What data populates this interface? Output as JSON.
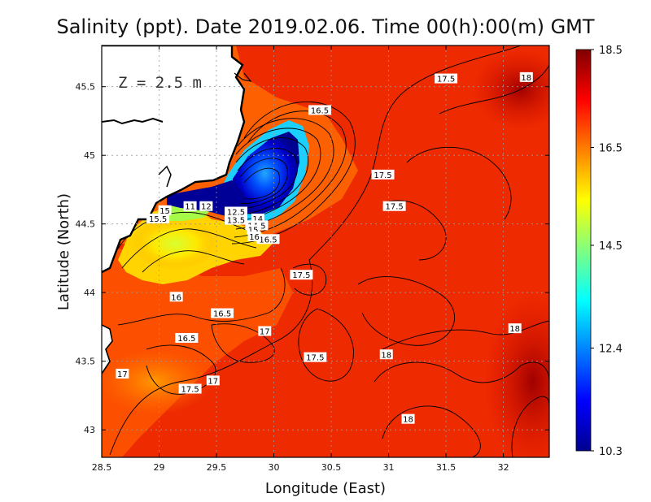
{
  "title": "Salinity (ppt). Date 2019.02.06. Time 00(h):00(m) GMT",
  "depth_label": "Z = 2.5 m",
  "xlabel": "Longitude (East)",
  "ylabel": "Latitude (North)",
  "colors": {
    "frame": "#000000",
    "grid": "#9a9a9a",
    "land": "#ffffff",
    "coast": "#000000",
    "colormap": [
      "#00008f",
      "#0000ff",
      "#0080ff",
      "#00ffff",
      "#80ff80",
      "#ffff00",
      "#ff8000",
      "#ff0000",
      "#800000"
    ]
  },
  "chart_data": {
    "type": "heatmap",
    "title": "Salinity (ppt). Date 2019.02.06. Time 00(h):00(m) GMT",
    "xlabel": "Longitude (East)",
    "ylabel": "Latitude (North)",
    "xlim": [
      28.5,
      32.4
    ],
    "ylim": [
      42.8,
      45.8
    ],
    "x_ticks": [
      28.5,
      29,
      29.5,
      30,
      30.5,
      31,
      31.5,
      32
    ],
    "x_tick_labels": [
      "28.5",
      "29",
      "29.5",
      "30",
      "30.5",
      "31",
      "31.5",
      "32"
    ],
    "y_ticks": [
      43,
      43.5,
      44,
      44.5,
      45,
      45.5
    ],
    "y_tick_labels": [
      "43",
      "43.5",
      "44",
      "44.5",
      "45",
      "45.5"
    ],
    "grid": true,
    "colorbar": {
      "min": 10.3,
      "max": 18.5,
      "ticks": [
        10.3,
        12.4,
        14.5,
        16.5,
        18.5
      ],
      "tick_labels": [
        "10.3",
        "12.4",
        "14.5",
        "16.5",
        "18.5"
      ]
    },
    "contour_labels": [
      {
        "text": "17.5",
        "lon": 31.5,
        "lat": 45.56
      },
      {
        "text": "18",
        "lon": 32.2,
        "lat": 45.57
      },
      {
        "text": "16.5",
        "lon": 30.4,
        "lat": 45.33
      },
      {
        "text": "17.5",
        "lon": 30.95,
        "lat": 44.86
      },
      {
        "text": "17.5",
        "lon": 31.05,
        "lat": 44.63
      },
      {
        "text": "16.5",
        "lon": 29.95,
        "lat": 44.39
      },
      {
        "text": "17.5",
        "lon": 30.24,
        "lat": 44.13
      },
      {
        "text": "15",
        "lon": 29.05,
        "lat": 44.6
      },
      {
        "text": "15.5",
        "lon": 28.99,
        "lat": 44.54
      },
      {
        "text": "11",
        "lon": 29.27,
        "lat": 44.63
      },
      {
        "text": "12",
        "lon": 29.41,
        "lat": 44.63
      },
      {
        "text": "12.5",
        "lon": 29.67,
        "lat": 44.59
      },
      {
        "text": "13.5",
        "lon": 29.67,
        "lat": 44.53
      },
      {
        "text": "14",
        "lon": 29.86,
        "lat": 44.54
      },
      {
        "text": "14.5",
        "lon": 29.85,
        "lat": 44.49
      },
      {
        "text": "15",
        "lon": 29.82,
        "lat": 44.46
      },
      {
        "text": "16",
        "lon": 29.83,
        "lat": 44.41
      },
      {
        "text": "16",
        "lon": 29.15,
        "lat": 43.97
      },
      {
        "text": "16.5",
        "lon": 29.55,
        "lat": 43.85
      },
      {
        "text": "16.5",
        "lon": 29.24,
        "lat": 43.67
      },
      {
        "text": "17",
        "lon": 29.92,
        "lat": 43.72
      },
      {
        "text": "17.5",
        "lon": 30.36,
        "lat": 43.53
      },
      {
        "text": "18",
        "lon": 30.98,
        "lat": 43.55
      },
      {
        "text": "18",
        "lon": 32.1,
        "lat": 43.74
      },
      {
        "text": "17",
        "lon": 28.68,
        "lat": 43.41
      },
      {
        "text": "17",
        "lon": 29.47,
        "lat": 43.36
      },
      {
        "text": "17.5",
        "lon": 29.27,
        "lat": 43.3
      },
      {
        "text": "18",
        "lon": 31.17,
        "lat": 43.08
      }
    ]
  }
}
